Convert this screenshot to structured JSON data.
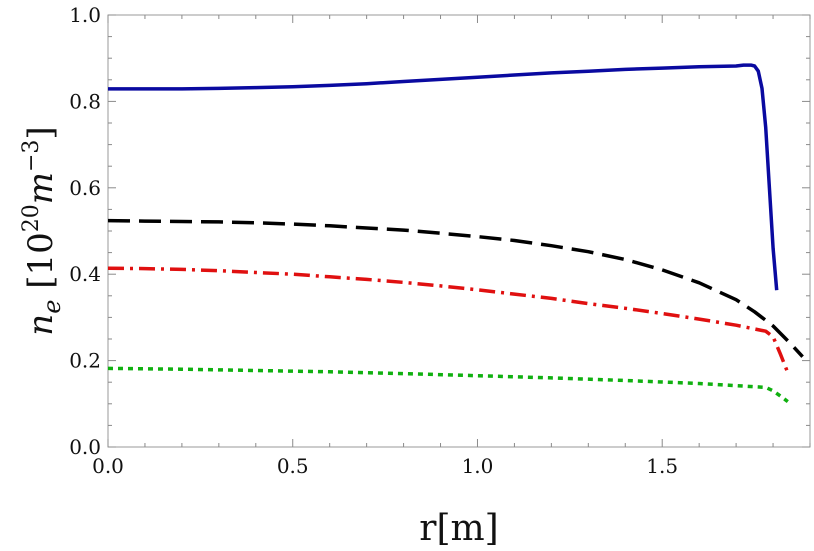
{
  "chart_data": {
    "type": "line",
    "title": "",
    "xlabel": "r[m]",
    "ylabel": {
      "base": "n",
      "subscript": "e",
      "unit_prefix": " [10",
      "unit_exp1": "20",
      "unit_mid": "m",
      "unit_exp2": "−3",
      "unit_suffix": "]"
    },
    "xlim": [
      0.0,
      1.9
    ],
    "ylim": [
      0.0,
      1.0
    ],
    "xticks": [
      "0.0",
      "0.5",
      "1.0",
      "1.5"
    ],
    "yticks": [
      "0.0",
      "0.2",
      "0.4",
      "0.6",
      "0.8",
      "1.0"
    ],
    "grid": false,
    "legend": "none",
    "series": [
      {
        "color": "#0a0aa0",
        "dash": "solid",
        "x": [
          0.0,
          0.1,
          0.2,
          0.3,
          0.4,
          0.5,
          0.6,
          0.7,
          0.8,
          0.9,
          1.0,
          1.1,
          1.2,
          1.3,
          1.4,
          1.5,
          1.6,
          1.7,
          1.72,
          1.74,
          1.75,
          1.76,
          1.77,
          1.78,
          1.79,
          1.8,
          1.81
        ],
        "y": [
          0.829,
          0.829,
          0.829,
          0.83,
          0.832,
          0.834,
          0.837,
          0.841,
          0.846,
          0.851,
          0.856,
          0.861,
          0.866,
          0.87,
          0.874,
          0.877,
          0.88,
          0.882,
          0.884,
          0.884,
          0.882,
          0.87,
          0.83,
          0.74,
          0.6,
          0.46,
          0.363
        ]
      },
      {
        "color": "#000000",
        "dash": "dashed",
        "x": [
          0.0,
          0.1,
          0.2,
          0.3,
          0.4,
          0.5,
          0.6,
          0.7,
          0.8,
          0.9,
          1.0,
          1.1,
          1.2,
          1.3,
          1.4,
          1.5,
          1.6,
          1.7,
          1.75,
          1.8,
          1.85,
          1.88
        ],
        "y": [
          0.524,
          0.523,
          0.522,
          0.521,
          0.519,
          0.516,
          0.512,
          0.507,
          0.502,
          0.495,
          0.487,
          0.478,
          0.466,
          0.452,
          0.434,
          0.41,
          0.38,
          0.341,
          0.313,
          0.28,
          0.237,
          0.209
        ]
      },
      {
        "color": "#e01010",
        "dash": "dashdot",
        "x": [
          0.0,
          0.1,
          0.2,
          0.3,
          0.4,
          0.5,
          0.6,
          0.7,
          0.8,
          0.9,
          1.0,
          1.1,
          1.2,
          1.3,
          1.4,
          1.5,
          1.6,
          1.7,
          1.78,
          1.8,
          1.82,
          1.84
        ],
        "y": [
          0.414,
          0.413,
          0.411,
          0.408,
          0.404,
          0.4,
          0.394,
          0.388,
          0.381,
          0.373,
          0.364,
          0.354,
          0.344,
          0.332,
          0.321,
          0.309,
          0.296,
          0.282,
          0.268,
          0.255,
          0.215,
          0.172
        ]
      },
      {
        "color": "#10b010",
        "dash": "dotted",
        "x": [
          0.0,
          0.2,
          0.4,
          0.6,
          0.8,
          1.0,
          1.2,
          1.4,
          1.6,
          1.78,
          1.8,
          1.82,
          1.84
        ],
        "y": [
          0.182,
          0.18,
          0.177,
          0.174,
          0.17,
          0.165,
          0.16,
          0.154,
          0.147,
          0.138,
          0.13,
          0.118,
          0.105
        ]
      }
    ]
  }
}
